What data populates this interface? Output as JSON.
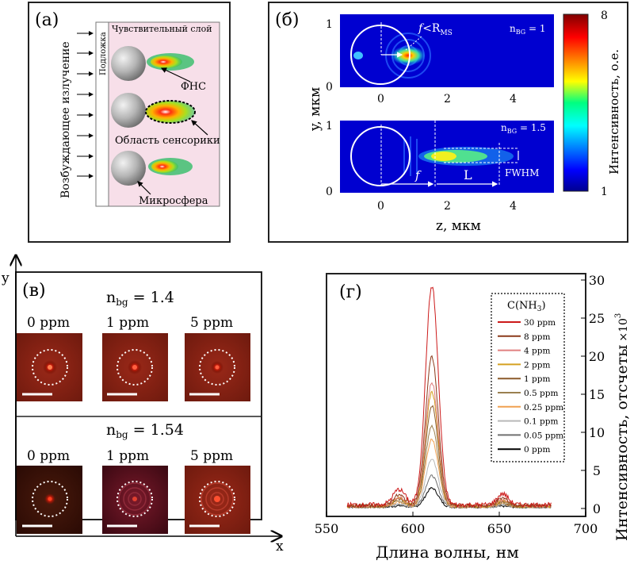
{
  "panel_a": {
    "tag": "(а)",
    "arrow_label": "Возбуждающее излучение",
    "substrate_label": "Подложка",
    "layer_label": "Чувствительный слой",
    "fns_label": "ФНС",
    "sensing_label": "Область сенсорики",
    "sphere_label": "Микросфера",
    "colors": {
      "layer_bg": "#f7dfe9",
      "substrate_bg": "#ffffff",
      "sphere": "#b8b8b8"
    }
  },
  "panel_b": {
    "tag": "(б)",
    "top_n": "n",
    "top_n_sub": "BG",
    "top_n_val": " = 1",
    "bot_n": "n",
    "bot_n_sub": "BG",
    "bot_n_val": " = 1.5",
    "f_rms_f": "f",
    "f_rms_rest": "<R",
    "f_rms_sub": "MS",
    "f_label": "f",
    "L_label": "L",
    "fwhm_label": "FWHM",
    "ylabel": "y, мкм",
    "xlabel": "z, мкм",
    "y_ticks_top": [
      "1",
      "0"
    ],
    "y_ticks_bot": [
      "1",
      "0"
    ],
    "x_ticks": [
      "0",
      "2",
      "4"
    ],
    "colorbar_label": "Интенсивность, о.е.",
    "colorbar_max": "8",
    "colorbar_min": "1"
  },
  "panel_v": {
    "tag": "(в)",
    "axis_y": "y",
    "axis_x": "x",
    "row1_n": "n",
    "row1_sub": "bg",
    "row1_val": " = 1.4",
    "row2_n": "n",
    "row2_sub": "bg",
    "row2_val": " = 1.54",
    "conc_labels": [
      "0 ppm",
      "1 ppm",
      "5 ppm"
    ],
    "colors": {
      "tile_dark": "#3a0a06",
      "tile_red": "#8a1a10"
    }
  },
  "panel_g": {
    "tag": "(г)",
    "xlabel": "Длина волны, нм",
    "ylabel": "Интенсивность, отсчеты",
    "ylabel_scale": "×10",
    "ylabel_exp": "3",
    "legend_title": "C(NH",
    "legend_title_sub": "3",
    "legend_title_end": ")"
  },
  "chart_data": {
    "type": "line",
    "title": "",
    "xlabel": "Длина волны, нм",
    "ylabel": "Интенсивность, отсчеты ×10³",
    "xlim": [
      550,
      700
    ],
    "ylim": [
      0,
      30
    ],
    "x_ticks": [
      550,
      600,
      650,
      700
    ],
    "y_ticks": [
      0,
      5,
      10,
      15,
      20,
      25,
      30
    ],
    "peak_x": 611,
    "grid": false,
    "legend_position": "top-right",
    "series": [
      {
        "name": "30 ppm",
        "peak": 28.7,
        "color": "#cc1a1a"
      },
      {
        "name": "8 ppm",
        "peak": 19.5,
        "color": "#8b3a1a"
      },
      {
        "name": "4 ppm",
        "peak": 16.2,
        "color": "#e08080"
      },
      {
        "name": "2 ppm",
        "peak": 14.9,
        "color": "#d4a020"
      },
      {
        "name": "1 ppm",
        "peak": 13.1,
        "color": "#8b5a2a"
      },
      {
        "name": "0.5 ppm",
        "peak": 10.5,
        "color": "#9a8050"
      },
      {
        "name": "0.25 ppm",
        "peak": 8.8,
        "color": "#f0a050"
      },
      {
        "name": "0.1 ppm",
        "peak": 6.2,
        "color": "#b8b8b8"
      },
      {
        "name": "0.05 ppm",
        "peak": 4.1,
        "color": "#707070"
      },
      {
        "name": "0 ppm",
        "peak": 2.5,
        "color": "#000000"
      }
    ]
  }
}
